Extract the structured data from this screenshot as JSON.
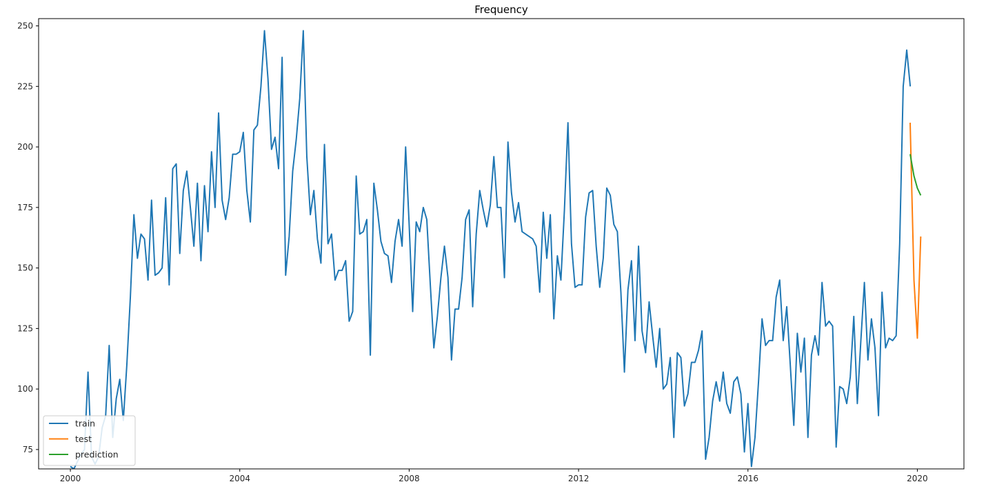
{
  "chart_data": {
    "type": "line",
    "title": "Frequency",
    "xlabel": "",
    "ylabel": "",
    "xlim": [
      1999.25,
      2021.1
    ],
    "ylim": [
      67,
      253
    ],
    "xticks": [
      2000,
      2004,
      2008,
      2012,
      2016,
      2020
    ],
    "xtick_labels": [
      "2000",
      "2004",
      "2008",
      "2012",
      "2016",
      "2020"
    ],
    "yticks": [
      75,
      100,
      125,
      150,
      175,
      200,
      225,
      250
    ],
    "ytick_labels": [
      "75",
      "100",
      "125",
      "150",
      "175",
      "200",
      "225",
      "250"
    ],
    "grid": false,
    "legend_position": "lower-left",
    "series": [
      {
        "name": "train",
        "color": "#1f77b4",
        "x_start": 2000.0,
        "x_step": 0.08333,
        "values": [
          68,
          67,
          70,
          73,
          75,
          107,
          72,
          69,
          72,
          84,
          89,
          118,
          80,
          96,
          104,
          87,
          110,
          138,
          172,
          154,
          164,
          162,
          145,
          178,
          147,
          148,
          150,
          179,
          143,
          191,
          193,
          156,
          182,
          190,
          175,
          159,
          185,
          153,
          184,
          165,
          198,
          175,
          214,
          178,
          170,
          179,
          197,
          197,
          198,
          206,
          182,
          169,
          207,
          209,
          225,
          248,
          228,
          199,
          204,
          191,
          237,
          147,
          163,
          190,
          203,
          220,
          248,
          196,
          172,
          182,
          162,
          152,
          201,
          160,
          164,
          145,
          149,
          149,
          153,
          128,
          132,
          188,
          164,
          165,
          170,
          114,
          185,
          174,
          161,
          156,
          155,
          144,
          161,
          170,
          159,
          200,
          168,
          132,
          169,
          165,
          175,
          170,
          143,
          117,
          130,
          146,
          159,
          146,
          112,
          133,
          133,
          146,
          170,
          174,
          134,
          164,
          182,
          174,
          167,
          176,
          196,
          175,
          175,
          146,
          202,
          181,
          169,
          177,
          165,
          164,
          163,
          162,
          159,
          140,
          173,
          154,
          172,
          129,
          155,
          145,
          174,
          210,
          160,
          142,
          143,
          143,
          171,
          181,
          182,
          159,
          142,
          154,
          183,
          180,
          168,
          165,
          140,
          107,
          141,
          153,
          120,
          159,
          124,
          115,
          136,
          122,
          109,
          125,
          100,
          102,
          113,
          80,
          115,
          113,
          93,
          98,
          111,
          111,
          116,
          124,
          71,
          80,
          95,
          103,
          95,
          107,
          94,
          90,
          103,
          105,
          98,
          74,
          94,
          68,
          80,
          103,
          129,
          118,
          120,
          120,
          138,
          145,
          120,
          134,
          110,
          85,
          123,
          107,
          121,
          80,
          114,
          122,
          114,
          144,
          126,
          128,
          126,
          76,
          101,
          100,
          94,
          105,
          130,
          94,
          120,
          144,
          112,
          129,
          117,
          89,
          140,
          117,
          121,
          120,
          122,
          160,
          225,
          240,
          225
        ]
      },
      {
        "name": "test",
        "color": "#ff7f0e",
        "x": [
          2019.83,
          2019.92,
          2020.0,
          2020.08
        ],
        "values": [
          210,
          145,
          121,
          163
        ]
      },
      {
        "name": "prediction",
        "color": "#2ca02c",
        "x": [
          2019.83,
          2019.92,
          2020.0,
          2020.08
        ],
        "values": [
          197,
          188,
          183,
          180
        ]
      }
    ]
  }
}
